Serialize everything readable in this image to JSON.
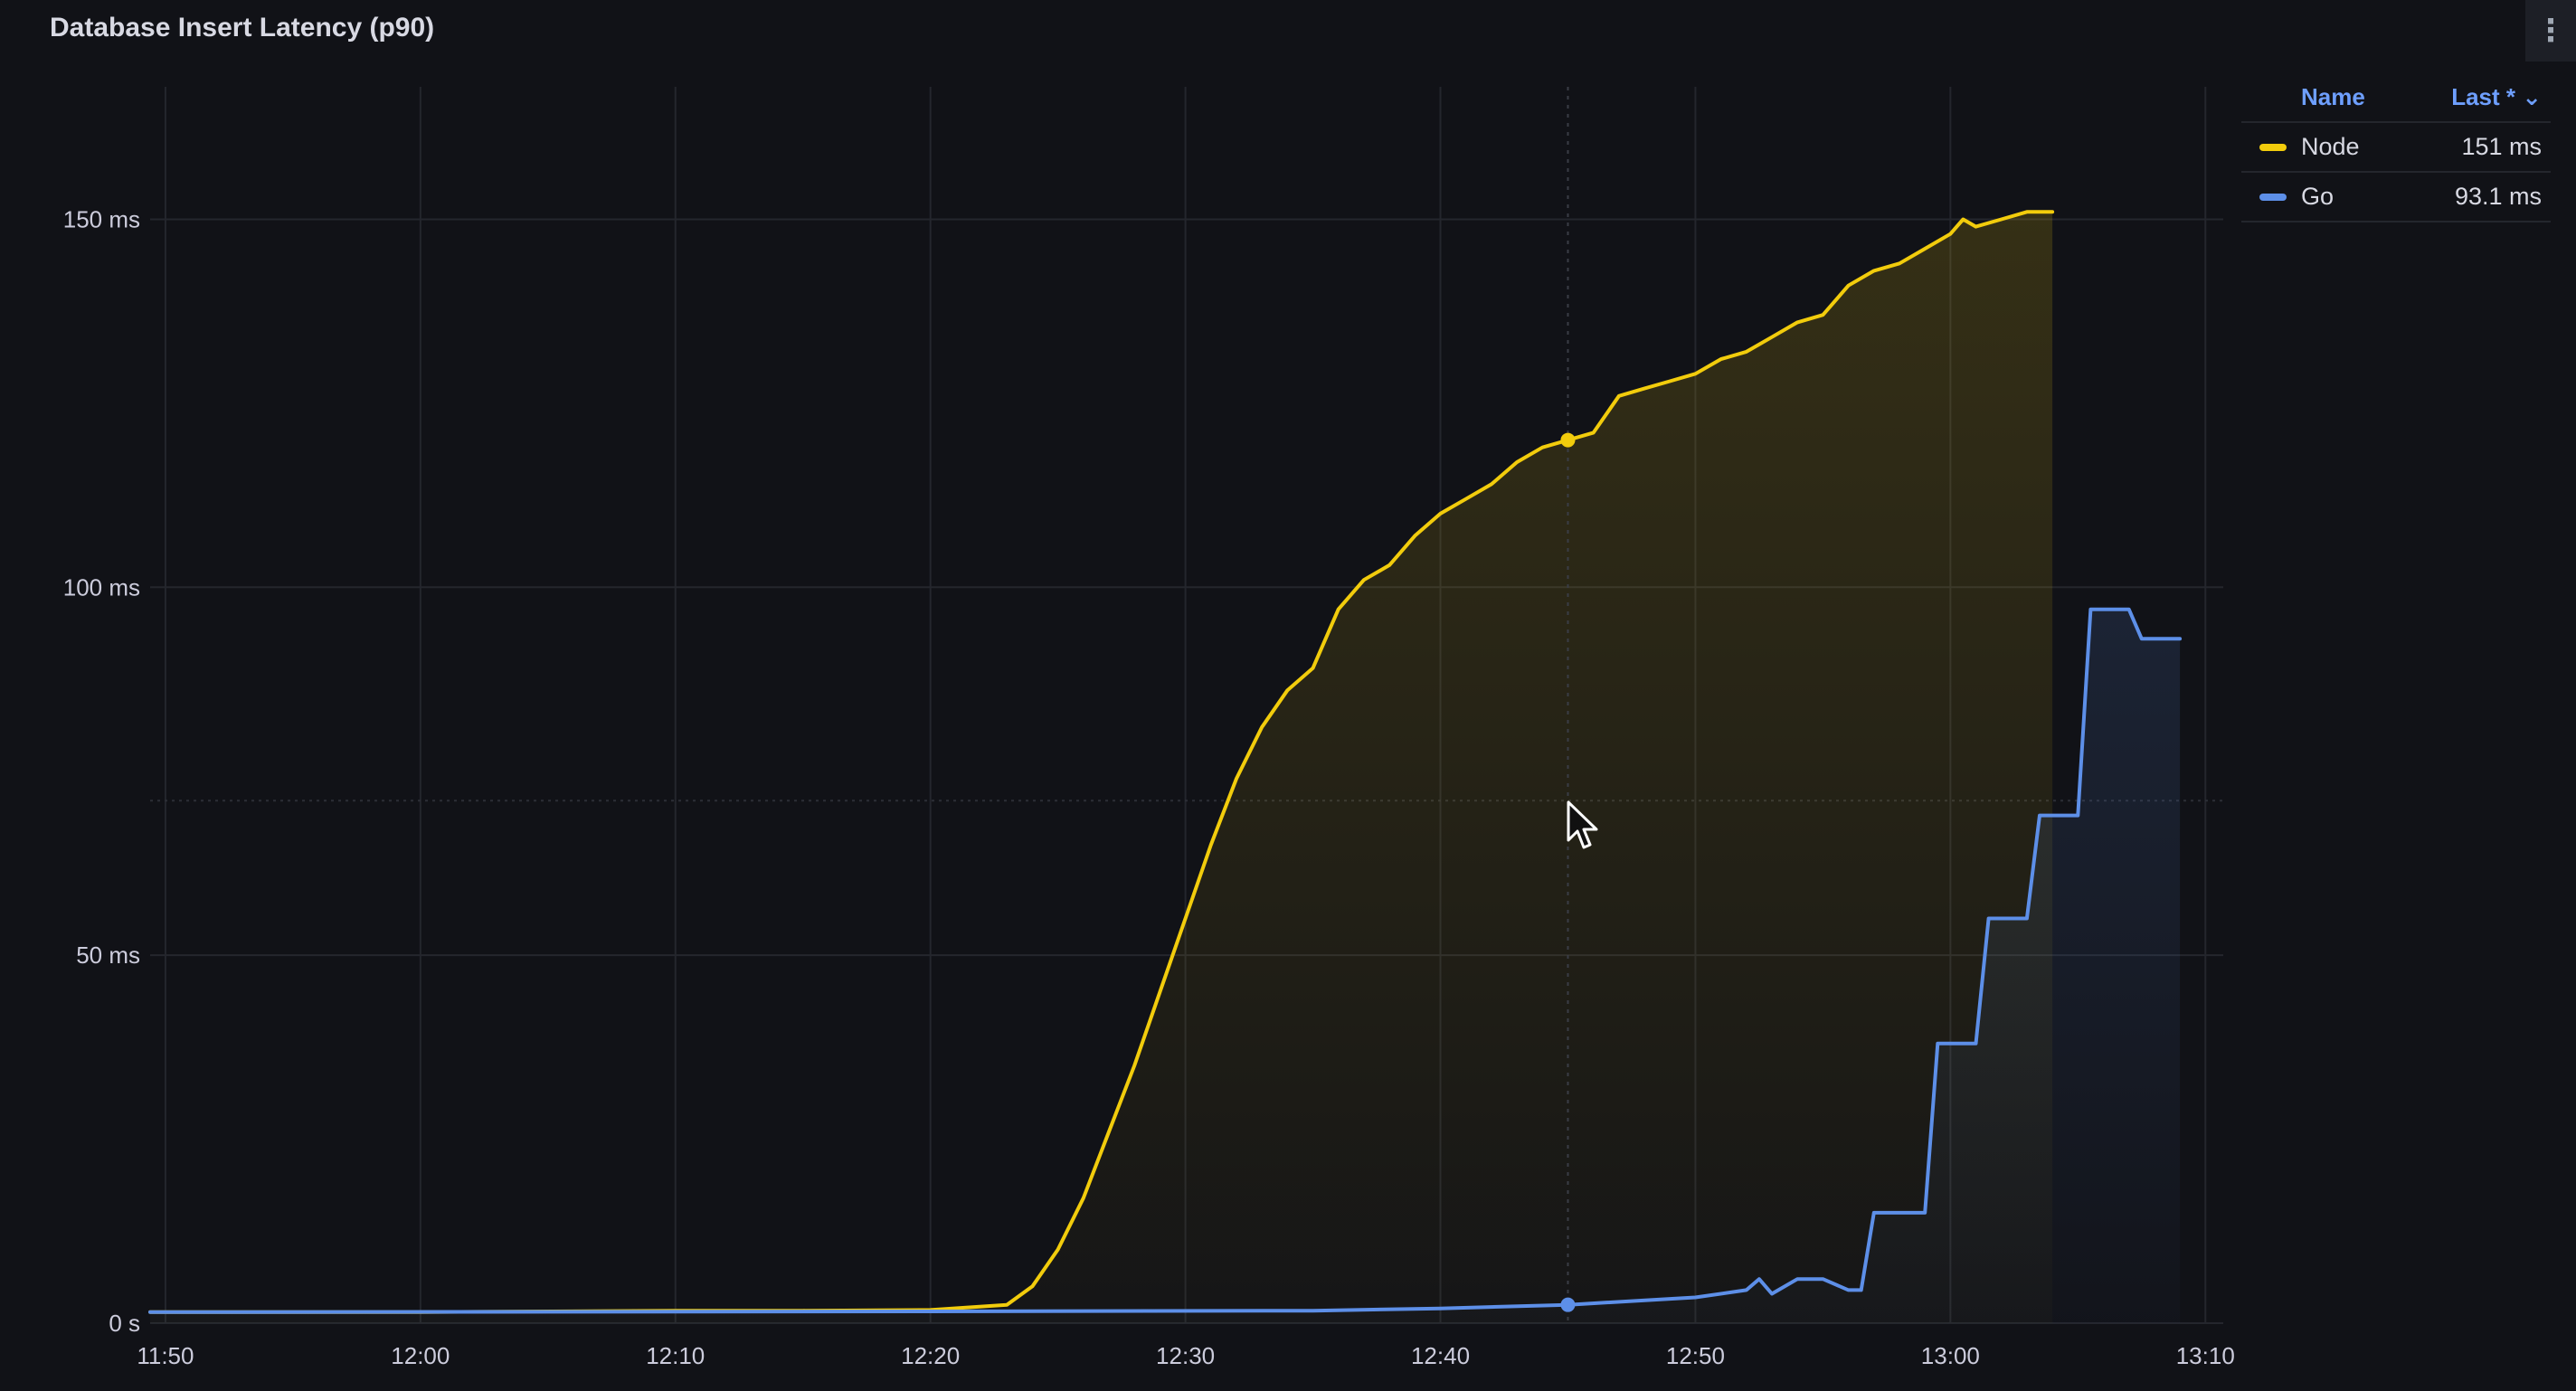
{
  "panel": {
    "title": "Database Insert Latency (p90)",
    "menu_icon": "more-vertical-icon"
  },
  "legend": {
    "header_name": "Name",
    "header_last": "Last * ⌄",
    "items": [
      {
        "name": "Node",
        "value": "151 ms",
        "color": "#f2cc0c"
      },
      {
        "name": "Go",
        "value": "93.1 ms",
        "color": "#5d8fe8"
      }
    ]
  },
  "chart_data": {
    "type": "line",
    "x_tick_labels": [
      "11:50",
      "12:00",
      "12:10",
      "12:20",
      "12:30",
      "12:40",
      "12:50",
      "13:00",
      "13:10"
    ],
    "y_tick_labels": [
      "0 s",
      "50 ms",
      "100 ms",
      "150 ms"
    ],
    "y_ticks": [
      0,
      50,
      100,
      150
    ],
    "xlim_minutes_after_1150": [
      -0.6,
      80.7
    ],
    "ylim": [
      0,
      168
    ],
    "grid": true,
    "legend_position": "top-right",
    "hover_time": "12:45",
    "series": [
      {
        "name": "Node",
        "color": "#f2cc0c",
        "points": [
          [
            -0.6,
            1.5
          ],
          [
            10,
            1.5
          ],
          [
            20,
            1.7
          ],
          [
            25,
            1.7
          ],
          [
            30,
            1.8
          ],
          [
            33,
            2.5
          ],
          [
            34,
            5
          ],
          [
            35,
            10
          ],
          [
            36,
            17
          ],
          [
            37,
            26
          ],
          [
            38,
            35
          ],
          [
            39,
            45
          ],
          [
            40,
            55
          ],
          [
            41,
            65
          ],
          [
            42,
            74
          ],
          [
            43,
            81
          ],
          [
            44,
            86
          ],
          [
            45,
            89
          ],
          [
            46,
            97
          ],
          [
            47,
            101
          ],
          [
            48,
            103
          ],
          [
            49,
            107
          ],
          [
            50,
            110
          ],
          [
            51,
            112
          ],
          [
            52,
            114
          ],
          [
            53,
            117
          ],
          [
            54,
            119
          ],
          [
            55,
            120
          ],
          [
            56,
            121
          ],
          [
            57,
            126
          ],
          [
            58,
            127
          ],
          [
            59,
            128
          ],
          [
            60,
            129
          ],
          [
            61,
            131
          ],
          [
            62,
            132
          ],
          [
            63,
            134
          ],
          [
            64,
            136
          ],
          [
            65,
            137
          ],
          [
            66,
            141
          ],
          [
            67,
            143
          ],
          [
            68,
            144
          ],
          [
            69,
            146
          ],
          [
            70,
            148
          ],
          [
            70.5,
            150
          ],
          [
            71,
            149
          ],
          [
            72,
            150
          ],
          [
            73,
            151
          ],
          [
            74,
            151
          ]
        ]
      },
      {
        "name": "Go",
        "color": "#5d8fe8",
        "points": [
          [
            -0.6,
            1.5
          ],
          [
            30,
            1.6
          ],
          [
            45,
            1.7
          ],
          [
            50,
            2
          ],
          [
            55,
            2.5
          ],
          [
            60,
            3.5
          ],
          [
            62,
            4.5
          ],
          [
            62.5,
            6
          ],
          [
            63,
            4
          ],
          [
            64,
            6
          ],
          [
            65,
            6
          ],
          [
            66,
            4.5
          ],
          [
            66.5,
            4.5
          ],
          [
            67,
            15
          ],
          [
            69,
            15
          ],
          [
            69.5,
            38
          ],
          [
            71,
            38
          ],
          [
            71.5,
            55
          ],
          [
            73,
            55
          ],
          [
            73.5,
            69
          ],
          [
            75,
            69
          ],
          [
            75.5,
            97
          ],
          [
            77,
            97
          ],
          [
            77.5,
            93
          ],
          [
            79,
            93
          ]
        ]
      }
    ]
  }
}
